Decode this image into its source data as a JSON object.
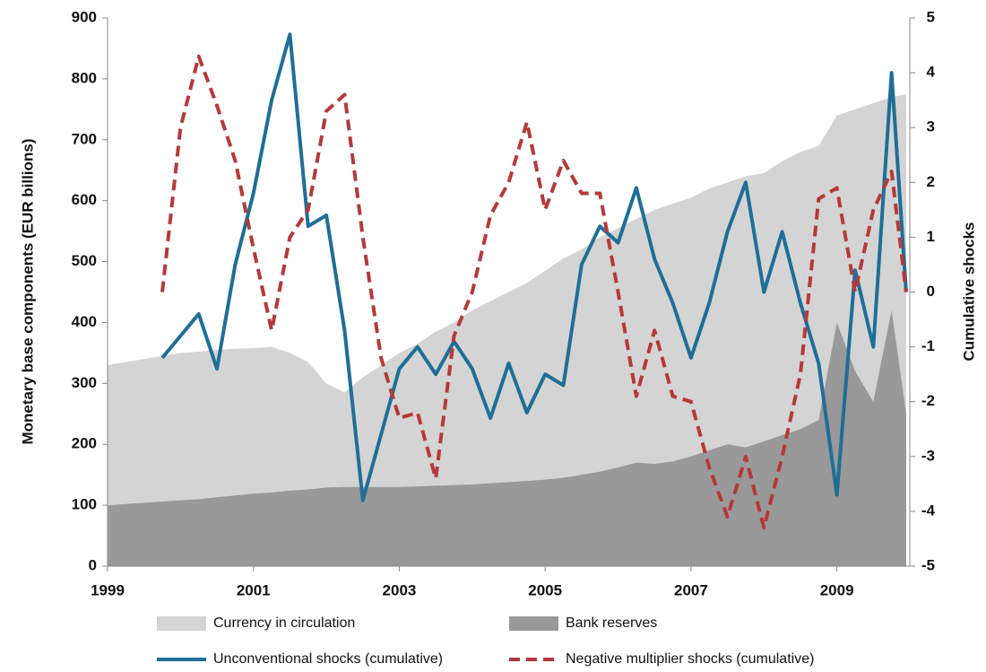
{
  "chart_data": {
    "type": "line",
    "ylabel": "Monetary base components (EUR billions)",
    "y2label": "Cumulative shocks",
    "x": [
      1999.0,
      1999.25,
      1999.5,
      1999.75,
      2000.0,
      2000.25,
      2000.5,
      2000.75,
      2001.0,
      2001.25,
      2001.5,
      2001.75,
      2002.0,
      2002.25,
      2002.5,
      2002.75,
      2003.0,
      2003.25,
      2003.5,
      2003.75,
      2004.0,
      2004.25,
      2004.5,
      2004.75,
      2005.0,
      2005.25,
      2005.5,
      2005.75,
      2006.0,
      2006.25,
      2006.5,
      2006.75,
      2007.0,
      2007.25,
      2007.5,
      2007.75,
      2008.0,
      2008.25,
      2008.5,
      2008.75,
      2009.0,
      2009.25,
      2009.5,
      2009.75,
      2009.95
    ],
    "xlim": [
      1999,
      2010
    ],
    "xticks": [
      1999,
      2001,
      2003,
      2005,
      2007,
      2009
    ],
    "ylim": [
      0,
      900
    ],
    "yticks": [
      0,
      100,
      200,
      300,
      400,
      500,
      600,
      700,
      800,
      900
    ],
    "y2lim": [
      -5,
      5
    ],
    "y2ticks": [
      -5,
      -4,
      -3,
      -2,
      -1,
      0,
      1,
      2,
      3,
      4,
      5
    ],
    "series": [
      {
        "name": "Currency in circulation",
        "style": "area",
        "color": "#d4d4d4",
        "values": [
          330,
          335,
          340,
          345,
          350,
          352,
          355,
          357,
          358,
          360,
          350,
          335,
          300,
          285,
          310,
          330,
          350,
          365,
          385,
          400,
          420,
          435,
          450,
          465,
          485,
          505,
          520,
          540,
          555,
          570,
          585,
          595,
          605,
          620,
          630,
          640,
          645,
          665,
          680,
          690,
          740,
          750,
          760,
          770,
          775
        ]
      },
      {
        "name": "Bank reserves",
        "style": "area",
        "color": "#999999",
        "values": [
          100,
          102,
          104,
          106,
          108,
          110,
          113,
          116,
          119,
          121,
          124,
          126,
          129,
          130,
          130,
          130,
          130,
          131,
          132,
          133,
          134,
          136,
          138,
          140,
          142,
          145,
          150,
          155,
          162,
          170,
          168,
          172,
          180,
          190,
          200,
          195,
          205,
          215,
          225,
          240,
          400,
          320,
          270,
          420,
          250
        ]
      },
      {
        "name": "Unconventional shocks (cumulative)",
        "style": "solid",
        "color": "#1f6e96",
        "axis": "y2",
        "values": [
          null,
          null,
          null,
          -1.2,
          -0.8,
          -0.4,
          -1.4,
          0.5,
          1.8,
          3.5,
          4.7,
          1.2,
          1.4,
          -0.7,
          -3.8,
          -2.6,
          -1.4,
          -1.0,
          -1.5,
          -0.9,
          -1.4,
          -2.3,
          -1.3,
          -2.2,
          -1.5,
          -1.7,
          0.5,
          1.2,
          0.9,
          1.9,
          0.6,
          -0.2,
          -1.2,
          -0.2,
          1.1,
          2.0,
          0.0,
          1.1,
          -0.2,
          -1.3,
          -3.7,
          0.4,
          -1.0,
          4.0,
          0.0
        ]
      },
      {
        "name": "Negative multiplier shocks (cumulative)",
        "style": "dashed",
        "color": "#b5393a",
        "axis": "y2",
        "values": [
          null,
          null,
          null,
          0.0,
          3.0,
          4.3,
          3.4,
          2.4,
          0.8,
          -0.7,
          1.0,
          1.5,
          3.3,
          3.6,
          1.0,
          -1.2,
          -2.3,
          -2.2,
          -3.4,
          -0.8,
          0.0,
          1.4,
          2.0,
          3.1,
          1.5,
          2.4,
          1.8,
          1.8,
          0.0,
          -1.9,
          -0.7,
          -1.9,
          -2.0,
          -3.2,
          -4.1,
          -3.0,
          -4.3,
          -3.0,
          -1.5,
          1.7,
          1.9,
          0.0,
          1.5,
          2.2,
          0.0
        ]
      }
    ]
  }
}
